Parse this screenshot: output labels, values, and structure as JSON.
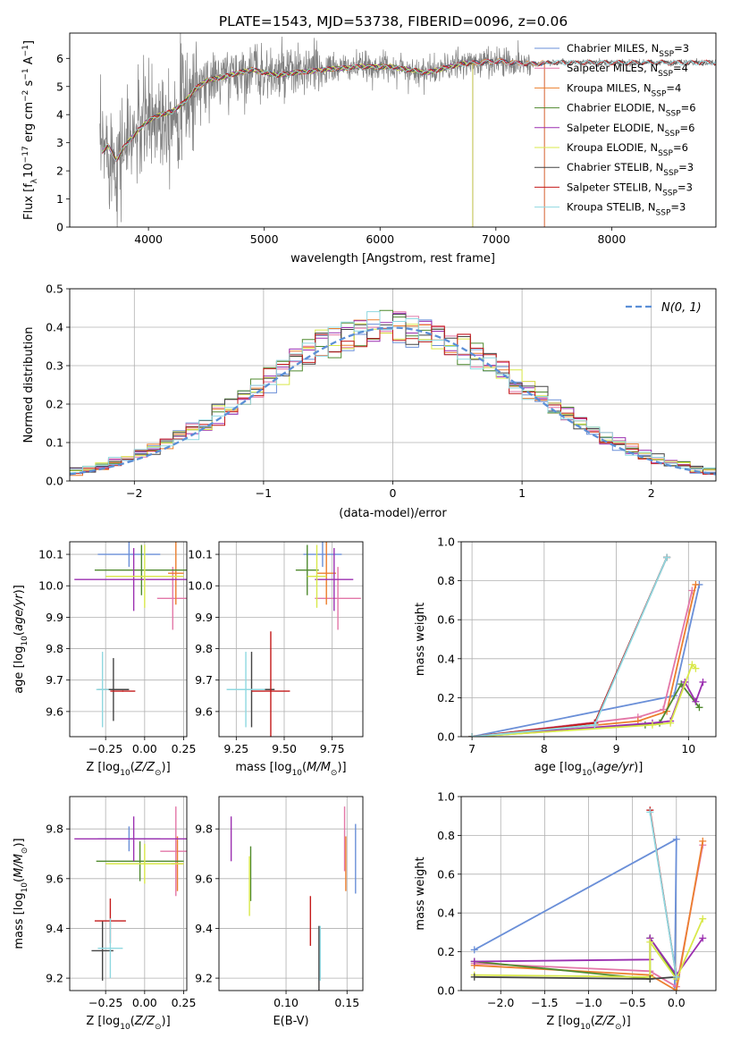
{
  "figure": {
    "title": "PLATE=1543, MJD=53738, FIBERID=0096, z=0.06"
  },
  "colors": {
    "Chabrier MILES": "#6a8fd8",
    "Salpeter MILES": "#e377a8",
    "Kroupa MILES": "#ec7f2e",
    "Chabrier ELODIE": "#4f8a2e",
    "Salpeter ELODIE": "#9b2fb0",
    "Kroupa ELODIE": "#d9e84a",
    "Chabrier STELIB": "#444444",
    "Salpeter STELIB": "#c41a1a",
    "Kroupa STELIB": "#8fd8e0",
    "data": "#808080",
    "gaussian": "#5b8fd6",
    "grid": "#b0b0b0"
  },
  "chart_data": [
    {
      "id": "spectrum",
      "type": "line",
      "xlabel": "wavelength [Angstrom, rest frame]",
      "ylabel": "Flux [f_λ 10^-17 erg cm^-2 s^-1 A^-1]",
      "xlim": [
        3320,
        8900
      ],
      "ylim": [
        0,
        6.9
      ],
      "xticks": [
        4000,
        5000,
        6000,
        7000,
        8000
      ],
      "yticks": [
        0,
        1,
        2,
        3,
        4,
        5,
        6
      ],
      "grid": false,
      "legend_position": "top-right",
      "continuum": {
        "x": [
          3580,
          3650,
          3720,
          3800,
          3900,
          4000,
          4100,
          4200,
          4300,
          4400,
          4500,
          4700,
          4900,
          5100,
          5300,
          5500,
          5800,
          6100,
          6400,
          6700,
          7000,
          7300,
          7500
        ],
        "y": [
          2.6,
          2.9,
          2.4,
          2.9,
          3.4,
          3.8,
          4.0,
          4.1,
          4.4,
          4.9,
          5.2,
          5.4,
          5.6,
          5.4,
          5.5,
          5.6,
          5.7,
          5.7,
          5.5,
          5.8,
          5.9,
          5.8,
          5.85
        ]
      },
      "series": [
        {
          "name": "Chabrier MILES",
          "nssp": "3"
        },
        {
          "name": "Salpeter MILES",
          "nssp": "4"
        },
        {
          "name": "Kroupa MILES",
          "nssp": "4"
        },
        {
          "name": "Chabrier ELODIE",
          "nssp": "6"
        },
        {
          "name": "Salpeter ELODIE",
          "nssp": "6"
        },
        {
          "name": "Kroupa ELODIE",
          "nssp": "6"
        },
        {
          "name": "Chabrier STELIB",
          "nssp": "3"
        },
        {
          "name": "Salpeter STELIB",
          "nssp": "3"
        },
        {
          "name": "Kroupa STELIB",
          "nssp": "3"
        }
      ],
      "model_ranges": {
        "Chabrier MILES": [
          3600,
          7420
        ],
        "Salpeter MILES": [
          3600,
          7420
        ],
        "Kroupa MILES": [
          3600,
          7420
        ],
        "Chabrier ELODIE": [
          3600,
          6800
        ],
        "Salpeter ELODIE": [
          3600,
          6800
        ],
        "Kroupa ELODIE": [
          3600,
          6800
        ],
        "Chabrier STELIB": [
          3600,
          8900
        ],
        "Salpeter STELIB": [
          3600,
          8900
        ],
        "Kroupa STELIB": [
          3600,
          8900
        ]
      }
    },
    {
      "id": "residuals",
      "type": "line",
      "xlabel": "(data-model)/error",
      "ylabel": "Normed distribution",
      "xlim": [
        -2.5,
        2.5
      ],
      "ylim": [
        0,
        0.5
      ],
      "xticks": [
        -2,
        -1,
        0,
        1,
        2
      ],
      "yticks": [
        0.0,
        0.1,
        0.2,
        0.3,
        0.4,
        0.5
      ],
      "grid": true,
      "legend_position": "top-right",
      "gaussian_label": "N(0, 1)"
    },
    {
      "id": "age_vs_Z",
      "type": "scatter",
      "xlabel": "Z [log10(Z/Z⊙)]",
      "ylabel": "age [log10(age/yr)]",
      "xlim": [
        -0.48,
        0.27
      ],
      "ylim": [
        9.52,
        10.14
      ],
      "xticks": [
        -0.25,
        0.0,
        0.25
      ],
      "yticks": [
        9.6,
        9.7,
        9.8,
        9.9,
        10.0,
        10.1
      ],
      "grid": true,
      "points": [
        {
          "series": "Chabrier MILES",
          "x": -0.1,
          "y": 10.1,
          "xerr": 0.2,
          "yerr": 0.04
        },
        {
          "series": "Salpeter MILES",
          "x": 0.18,
          "y": 9.96,
          "xerr": 0.1,
          "yerr": 0.1
        },
        {
          "series": "Kroupa MILES",
          "x": 0.2,
          "y": 10.04,
          "xerr": 0.05,
          "yerr": 0.1
        },
        {
          "series": "Chabrier ELODIE",
          "x": -0.02,
          "y": 10.05,
          "xerr": 0.3,
          "yerr": 0.08
        },
        {
          "series": "Salpeter ELODIE",
          "x": -0.07,
          "y": 10.02,
          "xerr": 0.38,
          "yerr": 0.1
        },
        {
          "series": "Kroupa ELODIE",
          "x": 0.0,
          "y": 10.03,
          "xerr": 0.25,
          "yerr": 0.1
        },
        {
          "series": "Chabrier STELIB",
          "x": -0.2,
          "y": 9.67,
          "xerr": 0.1,
          "yerr": 0.1
        },
        {
          "series": "Salpeter STELIB",
          "x": -0.14,
          "y": 9.665,
          "xerr": 0.08,
          "yerr": 0.002
        },
        {
          "series": "Kroupa STELIB",
          "x": -0.27,
          "y": 9.67,
          "xerr": 0.04,
          "yerr": 0.12
        }
      ]
    },
    {
      "id": "age_vs_mass",
      "type": "scatter",
      "xlabel": "mass [log10(M/M⊙)]",
      "ylabel": "",
      "xlim": [
        9.16,
        9.91
      ],
      "ylim": [
        9.52,
        10.14
      ],
      "xticks": [
        9.25,
        9.5,
        9.75
      ],
      "yticks": [
        9.6,
        9.7,
        9.8,
        9.9,
        10.0,
        10.1
      ],
      "grid": true,
      "points": [
        {
          "series": "Chabrier MILES",
          "x": 9.7,
          "y": 10.1,
          "xerr": 0.1,
          "yerr": 0.04
        },
        {
          "series": "Salpeter MILES",
          "x": 9.78,
          "y": 9.96,
          "xerr": 0.12,
          "yerr": 0.1
        },
        {
          "series": "Kroupa MILES",
          "x": 9.72,
          "y": 10.04,
          "xerr": 0.05,
          "yerr": 0.1
        },
        {
          "series": "Chabrier ELODIE",
          "x": 9.62,
          "y": 10.05,
          "xerr": 0.06,
          "yerr": 0.08
        },
        {
          "series": "Salpeter ELODIE",
          "x": 9.76,
          "y": 10.02,
          "xerr": 0.1,
          "yerr": 0.1
        },
        {
          "series": "Kroupa ELODIE",
          "x": 9.67,
          "y": 10.03,
          "xerr": 0.05,
          "yerr": 0.1
        },
        {
          "series": "Chabrier STELIB",
          "x": 9.33,
          "y": 9.67,
          "xerr": 0.12,
          "yerr": 0.12
        },
        {
          "series": "Salpeter STELIB",
          "x": 9.43,
          "y": 9.665,
          "xerr": 0.1,
          "yerr": 0.19
        },
        {
          "series": "Kroupa STELIB",
          "x": 9.3,
          "y": 9.67,
          "xerr": 0.1,
          "yerr": 0.12
        }
      ]
    },
    {
      "id": "weight_vs_age",
      "type": "line",
      "xlabel": "age [log10(age/yr)]",
      "ylabel": "mass weight",
      "xlim": [
        6.85,
        10.38
      ],
      "ylim": [
        0,
        1.0
      ],
      "xticks": [
        7,
        8,
        9,
        10
      ],
      "yticks": [
        0.0,
        0.2,
        0.4,
        0.6,
        0.8,
        1.0
      ],
      "grid": true,
      "series": [
        {
          "series": "Chabrier MILES",
          "x": [
            7.0,
            9.8,
            10.15
          ],
          "y": [
            0.0,
            0.21,
            0.78
          ]
        },
        {
          "series": "Salpeter MILES",
          "x": [
            7.0,
            9.3,
            9.65,
            10.05
          ],
          "y": [
            0.0,
            0.1,
            0.14,
            0.75
          ]
        },
        {
          "series": "Kroupa MILES",
          "x": [
            7.0,
            9.3,
            9.7,
            10.1
          ],
          "y": [
            0.0,
            0.08,
            0.13,
            0.78
          ]
        },
        {
          "series": "Chabrier ELODIE",
          "x": [
            7.0,
            9.4,
            9.6,
            9.9,
            10.15
          ],
          "y": [
            0.0,
            0.06,
            0.07,
            0.27,
            0.15
          ]
        },
        {
          "series": "Salpeter ELODIE",
          "x": [
            7.0,
            9.5,
            9.75,
            9.95,
            10.1,
            10.2
          ],
          "y": [
            0.0,
            0.07,
            0.08,
            0.28,
            0.18,
            0.28
          ]
        },
        {
          "series": "Kroupa ELODIE",
          "x": [
            7.0,
            9.5,
            9.75,
            10.05,
            10.1
          ],
          "y": [
            0.0,
            0.06,
            0.07,
            0.37,
            0.35
          ]
        },
        {
          "series": "Chabrier STELIB",
          "x": [
            7.0,
            8.7,
            9.7
          ],
          "y": [
            0.0,
            0.07,
            0.92
          ]
        },
        {
          "series": "Salpeter STELIB",
          "x": [
            7.0,
            8.7,
            9.7
          ],
          "y": [
            0.0,
            0.07,
            0.92
          ]
        },
        {
          "series": "Kroupa STELIB",
          "x": [
            7.0,
            8.7,
            9.7
          ],
          "y": [
            0.0,
            0.06,
            0.92
          ]
        }
      ]
    },
    {
      "id": "mass_vs_Z",
      "type": "scatter",
      "xlabel": "Z [log10(Z/Z⊙)]",
      "ylabel": "mass [log10(M/M⊙)]",
      "xlim": [
        -0.48,
        0.27
      ],
      "ylim": [
        9.15,
        9.93
      ],
      "xticks": [
        -0.25,
        0.0,
        0.25
      ],
      "yticks": [
        9.2,
        9.4,
        9.6,
        9.8
      ],
      "grid": true,
      "points": [
        {
          "series": "Chabrier MILES",
          "x": -0.1,
          "y": 9.76,
          "xerr": 0.2,
          "yerr": 0.05
        },
        {
          "series": "Salpeter MILES",
          "x": 0.2,
          "y": 9.71,
          "xerr": 0.1,
          "yerr": 0.18
        },
        {
          "series": "Kroupa MILES",
          "x": 0.21,
          "y": 9.66,
          "xerr": 0.04,
          "yerr": 0.11
        },
        {
          "series": "Chabrier ELODIE",
          "x": -0.03,
          "y": 9.67,
          "xerr": 0.28,
          "yerr": 0.08
        },
        {
          "series": "Salpeter ELODIE",
          "x": -0.07,
          "y": 9.76,
          "xerr": 0.38,
          "yerr": 0.09
        },
        {
          "series": "Kroupa ELODIE",
          "x": 0.0,
          "y": 9.66,
          "xerr": 0.25,
          "yerr": 0.08
        },
        {
          "series": "Chabrier STELIB",
          "x": -0.27,
          "y": 9.31,
          "xerr": 0.07,
          "yerr": 0.12
        },
        {
          "series": "Salpeter STELIB",
          "x": -0.22,
          "y": 9.43,
          "xerr": 0.1,
          "yerr": 0.09
        },
        {
          "series": "Kroupa STELIB",
          "x": -0.22,
          "y": 9.32,
          "xerr": 0.08,
          "yerr": 0.12
        }
      ]
    },
    {
      "id": "mass_vs_ebv",
      "type": "scatter",
      "xlabel": "E(B-V)",
      "ylabel": "",
      "xlim": [
        0.045,
        0.163
      ],
      "ylim": [
        9.15,
        9.93
      ],
      "xticks": [
        0.1,
        0.15
      ],
      "yticks": [
        9.2,
        9.4,
        9.6,
        9.8
      ],
      "grid": true,
      "points": [
        {
          "series": "Chabrier MILES",
          "x": 0.157,
          "y": 9.68,
          "yerr": 0.14
        },
        {
          "series": "Salpeter MILES",
          "x": 0.148,
          "y": 9.76,
          "yerr": 0.13
        },
        {
          "series": "Kroupa MILES",
          "x": 0.149,
          "y": 9.66,
          "yerr": 0.11
        },
        {
          "series": "Chabrier ELODIE",
          "x": 0.071,
          "y": 9.62,
          "yerr": 0.11
        },
        {
          "series": "Salpeter ELODIE",
          "x": 0.055,
          "y": 9.76,
          "yerr": 0.09
        },
        {
          "series": "Kroupa ELODIE",
          "x": 0.07,
          "y": 9.57,
          "yerr": 0.12
        },
        {
          "series": "Chabrier STELIB",
          "x": 0.127,
          "y": 9.28,
          "yerr": 0.13
        },
        {
          "series": "Salpeter STELIB",
          "x": 0.12,
          "y": 9.43,
          "yerr": 0.1
        },
        {
          "series": "Kroupa STELIB",
          "x": 0.128,
          "y": 9.3,
          "yerr": 0.11
        }
      ]
    },
    {
      "id": "weight_vs_Z",
      "type": "line",
      "xlabel": "Z [log10(Z/Z⊙)]",
      "ylabel": "mass weight",
      "xlim": [
        -2.45,
        0.45
      ],
      "ylim": [
        0,
        1.0
      ],
      "xticks": [
        -2.0,
        -1.5,
        -1.0,
        -0.5,
        0.0
      ],
      "yticks": [
        0.0,
        0.2,
        0.4,
        0.6,
        0.8,
        1.0
      ],
      "grid": true,
      "series": [
        {
          "series": "Chabrier MILES",
          "x": [
            -2.3,
            0.0,
            -0.02
          ],
          "y": [
            0.21,
            0.78,
            0.0
          ]
        },
        {
          "series": "Salpeter MILES",
          "x": [
            -2.3,
            -0.3,
            0.0,
            0.3
          ],
          "y": [
            0.14,
            0.1,
            0.02,
            0.75
          ]
        },
        {
          "series": "Kroupa MILES",
          "x": [
            -2.3,
            -0.3,
            0.0,
            0.3
          ],
          "y": [
            0.13,
            0.08,
            0.0,
            0.77
          ]
        },
        {
          "series": "Chabrier ELODIE",
          "x": [
            -2.3,
            -0.3,
            -0.3,
            0.0
          ],
          "y": [
            0.15,
            0.06,
            0.27,
            0.07
          ]
        },
        {
          "series": "Salpeter ELODIE",
          "x": [
            -2.3,
            -0.3,
            -0.3,
            0.0,
            0.3
          ],
          "y": [
            0.15,
            0.16,
            0.27,
            0.08,
            0.27
          ]
        },
        {
          "series": "Kroupa ELODIE",
          "x": [
            -2.3,
            -0.3,
            -0.3,
            0.0,
            0.3
          ],
          "y": [
            0.08,
            0.07,
            0.25,
            0.06,
            0.37
          ]
        },
        {
          "series": "Chabrier STELIB",
          "x": [
            -2.3,
            -0.3,
            0.0
          ],
          "y": [
            0.07,
            0.06,
            0.07
          ]
        },
        {
          "series": "Salpeter STELIB",
          "x": [
            -0.3,
            0.0
          ],
          "y": [
            0.93,
            0.07
          ]
        },
        {
          "series": "Kroupa STELIB",
          "x": [
            -0.3,
            0.0
          ],
          "y": [
            0.92,
            0.07
          ]
        }
      ]
    }
  ]
}
